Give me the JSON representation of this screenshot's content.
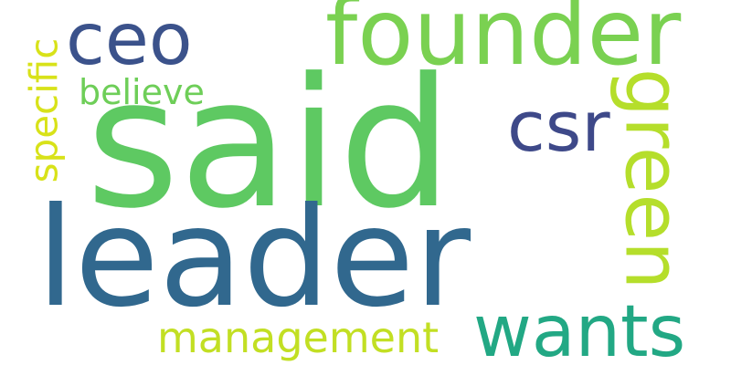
{
  "words": {
    "said": {
      "text": "said",
      "color": "#5ec962"
    },
    "leader": {
      "text": "leader",
      "color": "#31688e"
    },
    "founder": {
      "text": "founder",
      "color": "#7ad151"
    },
    "ceo": {
      "text": "ceo",
      "color": "#3b528b"
    },
    "csr": {
      "text": "csr",
      "color": "#3e4989"
    },
    "wants": {
      "text": "wants",
      "color": "#22a884"
    },
    "green": {
      "text": "green",
      "color": "#b5de2b"
    },
    "management": {
      "text": "management",
      "color": "#c2df23"
    },
    "believe": {
      "text": "believe",
      "color": "#6ece58"
    },
    "specific": {
      "text": "specific",
      "color": "#d8e219"
    }
  }
}
